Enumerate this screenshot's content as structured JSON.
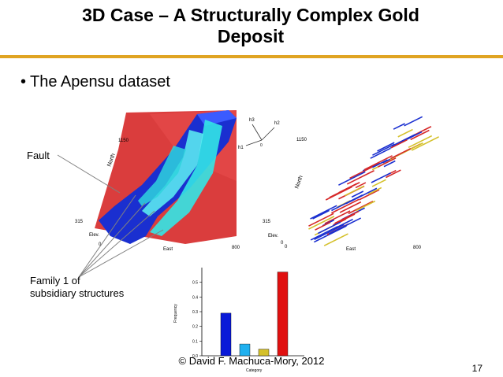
{
  "slide": {
    "title_line1": "3D Case – A Structurally Complex Gold",
    "title_line2": "Deposit",
    "bullet": "The Apensu dataset",
    "label_fault": "Fault",
    "label_family_line1": "Family 1 of",
    "label_family_line2": "subsidiary structures",
    "footer": "© David F. Machuca-Mory, 2012",
    "page_number": "17"
  },
  "model_left": {
    "axis_north": "North",
    "axis_elev": "Elev.",
    "axis_east": "East",
    "tick_1150": "1150",
    "tick_315": "315",
    "tick_800": "800",
    "tick_origin": "0",
    "colors": {
      "fault_plane": "#d62828",
      "orebody": "#1a2fd0",
      "structure": "#33e6e6"
    }
  },
  "model_right": {
    "axis_north": "North",
    "axis_elev": "Elev.",
    "axis_east": "East",
    "tick_1150": "1150",
    "tick_315": "315",
    "tick_800": "800",
    "tick_origin_a": "0",
    "tick_origin_b": "0",
    "orientation": {
      "h1": "h1",
      "h2": "h2",
      "h3": "h3",
      "center": "0"
    }
  },
  "chart_data": {
    "type": "bar",
    "categories": [
      "",
      "",
      "",
      ""
    ],
    "values": [
      0.29,
      0.08,
      0.045,
      0.57
    ],
    "colors": [
      "#0a1ad8",
      "#1fb0ef",
      "#d4c02a",
      "#e01010"
    ],
    "xlabel": "Category",
    "ylabel": "Frequency",
    "ylim": [
      0,
      0.6
    ],
    "yticks": [
      "0.0",
      "0.1",
      "0.2",
      "0.3",
      "0.4",
      "0.5"
    ],
    "grid": false
  }
}
